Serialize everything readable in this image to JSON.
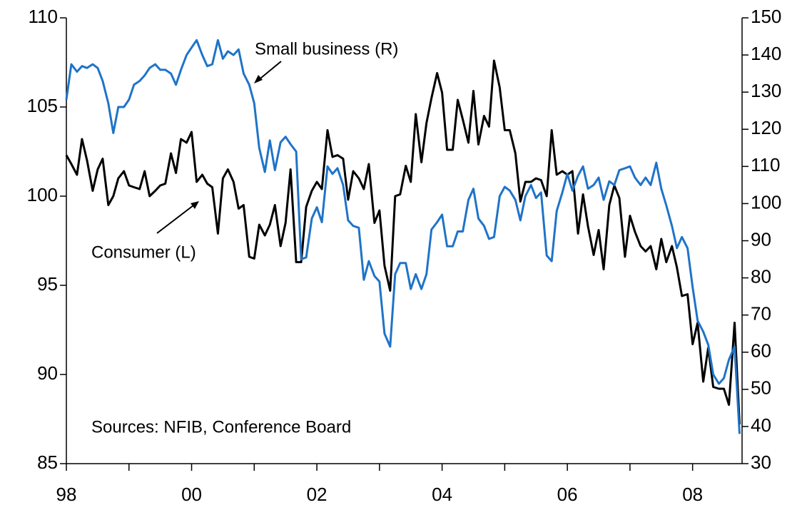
{
  "chart_data": {
    "type": "line",
    "annotations": [
      "Small business (R)",
      "Consumer (L)",
      "Sources: NFIB, Conference Board"
    ],
    "x": [
      1998,
      1998.08,
      1998.17,
      1998.25,
      1998.33,
      1998.42,
      1998.5,
      1998.58,
      1998.67,
      1998.75,
      1998.83,
      1998.92,
      1999,
      1999.08,
      1999.17,
      1999.25,
      1999.33,
      1999.42,
      1999.5,
      1999.58,
      1999.67,
      1999.75,
      1999.83,
      1999.92,
      2000,
      2000.08,
      2000.17,
      2000.25,
      2000.33,
      2000.42,
      2000.5,
      2000.58,
      2000.67,
      2000.75,
      2000.83,
      2000.92,
      2001,
      2001.08,
      2001.17,
      2001.25,
      2001.33,
      2001.42,
      2001.5,
      2001.58,
      2001.67,
      2001.75,
      2001.83,
      2001.92,
      2002,
      2002.08,
      2002.17,
      2002.25,
      2002.33,
      2002.42,
      2002.5,
      2002.58,
      2002.67,
      2002.75,
      2002.83,
      2002.92,
      2003,
      2003.08,
      2003.17,
      2003.25,
      2003.33,
      2003.42,
      2003.5,
      2003.58,
      2003.67,
      2003.75,
      2003.83,
      2003.92,
      2004,
      2004.08,
      2004.17,
      2004.25,
      2004.33,
      2004.42,
      2004.5,
      2004.58,
      2004.67,
      2004.75,
      2004.83,
      2004.92,
      2005,
      2005.08,
      2005.17,
      2005.25,
      2005.33,
      2005.42,
      2005.5,
      2005.58,
      2005.67,
      2005.75,
      2005.83,
      2005.92,
      2006,
      2006.08,
      2006.17,
      2006.25,
      2006.33,
      2006.42,
      2006.5,
      2006.58,
      2006.67,
      2006.75,
      2006.83,
      2006.92,
      2007,
      2007.08,
      2007.17,
      2007.25,
      2007.33,
      2007.42,
      2007.5,
      2007.58,
      2007.67,
      2007.75,
      2007.83,
      2007.92,
      2008,
      2008.08,
      2008.17,
      2008.25,
      2008.33,
      2008.42,
      2008.5,
      2008.58,
      2008.67,
      2008.75
    ],
    "series": [
      {
        "name": "Consumer (L)",
        "color": "#000000",
        "axis": "y",
        "values": [
          102.3,
          101.8,
          101.2,
          103.2,
          102,
          100.3,
          101.5,
          102.1,
          99.5,
          100,
          101,
          101.4,
          100.6,
          100.5,
          100.4,
          101.4,
          100,
          100.3,
          100.6,
          100.7,
          102.4,
          101.3,
          103.2,
          103,
          103.6,
          100.8,
          101.2,
          100.7,
          100.5,
          97.9,
          101,
          101.5,
          100.8,
          99.3,
          99.5,
          96.6,
          96.5,
          98.4,
          97.8,
          98.4,
          99.5,
          97.2,
          98.5,
          101.5,
          96.3,
          96.3,
          99.4,
          100.3,
          100.8,
          100.4,
          103.7,
          102.2,
          102.3,
          102.1,
          99.8,
          101.4,
          101,
          100.4,
          101.8,
          98.5,
          99.2,
          96.1,
          94.7,
          100,
          100.1,
          101.7,
          100.8,
          104.6,
          101.9,
          104.1,
          105.5,
          106.9,
          105.8,
          102.6,
          102.6,
          105.4,
          104.3,
          103,
          105.9,
          102.9,
          104.5,
          103.9,
          107.6,
          106.1,
          103.7,
          103.7,
          102.4,
          99.7,
          100.8,
          100.8,
          101,
          100.9,
          100,
          103.7,
          101.2,
          101.4,
          101.2,
          101.4,
          97.9,
          100.1,
          98.3,
          96.7,
          98.1,
          95.9,
          99.5,
          100.6,
          99.9,
          96.6,
          98.9,
          98,
          97.2,
          96.9,
          97.2,
          95.9,
          97.6,
          96.3,
          97.2,
          96,
          94.4,
          94.5,
          91.7,
          92.9,
          89.6,
          91.5,
          89.3,
          89.2,
          89.2,
          88.3,
          92.9,
          87.2
        ]
      },
      {
        "name": "Small business (R)",
        "color": "#1f73c8",
        "axis": "y2",
        "values": [
          128,
          137.5,
          135.5,
          137,
          136.5,
          137.5,
          136.5,
          133,
          127,
          119,
          126,
          126,
          128,
          132,
          133,
          134.5,
          136.5,
          137.5,
          136,
          136,
          135,
          132,
          136,
          140,
          142,
          144,
          140,
          137,
          137.5,
          144,
          139,
          141,
          140,
          141.5,
          135,
          132,
          127,
          115,
          108.5,
          117,
          109,
          116.5,
          118,
          116,
          114,
          85,
          85.5,
          96,
          99,
          95,
          110,
          108,
          109.5,
          105,
          95.5,
          94,
          93.5,
          79.5,
          84.5,
          80.5,
          79,
          65,
          61.5,
          81,
          84,
          84,
          77,
          81,
          77,
          81,
          93,
          95,
          97,
          88.5,
          88.5,
          92.5,
          92.5,
          101,
          104,
          96,
          94,
          90.5,
          91,
          102,
          104.5,
          103.5,
          101,
          95.5,
          102,
          105,
          101.5,
          103,
          86,
          84.5,
          98,
          103,
          108,
          103.5,
          107.5,
          110,
          104,
          105,
          107,
          101,
          106,
          105,
          109,
          109.5,
          110,
          107,
          105,
          107,
          105,
          111,
          104,
          99.5,
          94,
          88,
          91,
          88,
          77.5,
          68.5,
          65.5,
          62,
          54,
          51.5,
          53,
          58,
          61.5,
          38
        ]
      }
    ],
    "xlim": [
      1998,
      2008.79
    ],
    "xticks": [
      {
        "value": 1998,
        "label": "98"
      },
      {
        "value": 2000,
        "label": "00"
      },
      {
        "value": 2002,
        "label": "02"
      },
      {
        "value": 2004,
        "label": "04"
      },
      {
        "value": 2006,
        "label": "06"
      },
      {
        "value": 2008,
        "label": "08"
      }
    ],
    "xminorticks": [
      1999,
      2001,
      2003,
      2005,
      2007
    ],
    "ylim": [
      85,
      110
    ],
    "yticks": [
      85,
      90,
      95,
      100,
      105,
      110
    ],
    "y2lim": [
      30,
      150
    ],
    "y2ticks": [
      30,
      40,
      50,
      60,
      70,
      80,
      90,
      100,
      110,
      120,
      130,
      140,
      150
    ]
  }
}
